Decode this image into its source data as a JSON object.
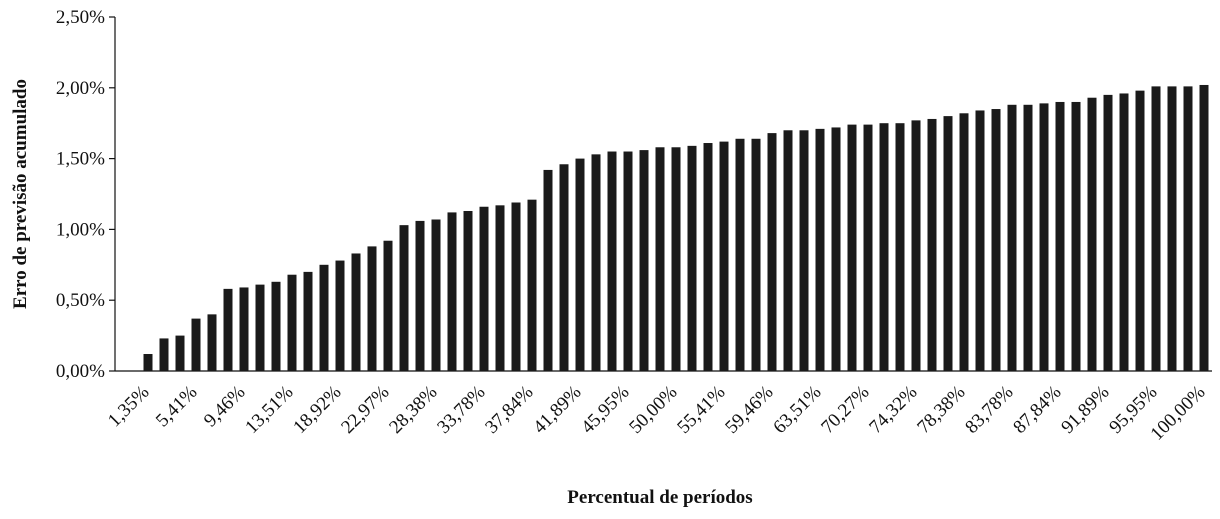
{
  "chart_data": {
    "type": "bar",
    "x_label": "Percentual de períodos",
    "y_label": "Erro de previsão acumulado",
    "color": "#1a1a1a",
    "categories": [
      "1,35%",
      null,
      null,
      "5,41%",
      null,
      null,
      "9,46%",
      null,
      null,
      "13,51%",
      null,
      null,
      "18,92%",
      null,
      null,
      "22,97%",
      null,
      null,
      "28,38%",
      null,
      null,
      "33,78%",
      null,
      null,
      "37,84%",
      null,
      null,
      "41,89%",
      null,
      null,
      "45,95%",
      null,
      null,
      "50,00%",
      null,
      null,
      "55,41%",
      null,
      null,
      "59,46%",
      null,
      null,
      "63,51%",
      null,
      null,
      "70,27%",
      null,
      null,
      "74,32%",
      null,
      null,
      "78,38%",
      null,
      null,
      "83,78%",
      null,
      null,
      "87,84%",
      null,
      null,
      "91,89%",
      null,
      null,
      "95,95%",
      null,
      null,
      "100,00%"
    ],
    "values": [
      0.12,
      0.23,
      0.25,
      0.37,
      0.4,
      0.58,
      0.59,
      0.61,
      0.63,
      0.68,
      0.7,
      0.75,
      0.78,
      0.83,
      0.88,
      0.92,
      1.03,
      1.06,
      1.07,
      1.12,
      1.13,
      1.16,
      1.17,
      1.19,
      1.21,
      1.42,
      1.46,
      1.5,
      1.53,
      1.55,
      1.55,
      1.56,
      1.58,
      1.58,
      1.59,
      1.61,
      1.62,
      1.64,
      1.64,
      1.68,
      1.7,
      1.7,
      1.71,
      1.72,
      1.74,
      1.74,
      1.75,
      1.75,
      1.77,
      1.78,
      1.8,
      1.82,
      1.84,
      1.85,
      1.88,
      1.88,
      1.89,
      1.9,
      1.9,
      1.93,
      1.95,
      1.96,
      1.98,
      2.01,
      2.01,
      2.01,
      2.02
    ],
    "ylim": [
      0,
      2.5
    ],
    "yticks": [
      {
        "value": 0,
        "label": "0,00%"
      },
      {
        "value": 0.5,
        "label": "0,50%"
      },
      {
        "value": 1,
        "label": "1,00%"
      },
      {
        "value": 1.5,
        "label": "1,50%"
      },
      {
        "value": 2,
        "label": "2,00%"
      },
      {
        "value": 2.5,
        "label": "2,50%"
      }
    ],
    "grid": false
  }
}
